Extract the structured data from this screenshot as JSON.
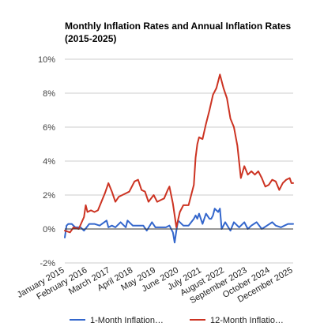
{
  "chart_data": {
    "type": "line",
    "title": "Monthly Inflation Rates and Annual Inflation Rates",
    "subtitle": "(2015-2025)",
    "xlabel": "",
    "ylabel": "",
    "x_range": [
      "2015-01",
      "2025-12"
    ],
    "ylim": [
      -2,
      10
    ],
    "y_ticks": [
      "10%",
      "8%",
      "6%",
      "4%",
      "2%",
      "0%",
      "-2%"
    ],
    "x_ticks": [
      "January 2015",
      "February 2016",
      "March 2017",
      "April 2018",
      "May 2019",
      "June 2020",
      "July 2021",
      "August 2022",
      "September 2023",
      "October 2024",
      "December 2025"
    ],
    "grid": true,
    "legend_position": "bottom",
    "series": [
      {
        "name": "1-Month Inflation…",
        "color": "#3366cc",
        "points": [
          [
            "2015-01",
            -0.5
          ],
          [
            "2015-02",
            0.2
          ],
          [
            "2015-03",
            0.3
          ],
          [
            "2015-05",
            0.3
          ],
          [
            "2015-07",
            0.1
          ],
          [
            "2015-10",
            0.1
          ],
          [
            "2015-12",
            -0.1
          ],
          [
            "2016-03",
            0.3
          ],
          [
            "2016-06",
            0.3
          ],
          [
            "2016-09",
            0.2
          ],
          [
            "2017-01",
            0.5
          ],
          [
            "2017-02",
            0.1
          ],
          [
            "2017-04",
            0.2
          ],
          [
            "2017-06",
            0.1
          ],
          [
            "2017-09",
            0.4
          ],
          [
            "2017-12",
            0.1
          ],
          [
            "2018-01",
            0.5
          ],
          [
            "2018-04",
            0.2
          ],
          [
            "2018-07",
            0.2
          ],
          [
            "2018-10",
            0.2
          ],
          [
            "2018-12",
            -0.1
          ],
          [
            "2019-03",
            0.4
          ],
          [
            "2019-05",
            0.1
          ],
          [
            "2019-08",
            0.1
          ],
          [
            "2019-11",
            0.1
          ],
          [
            "2020-01",
            0.2
          ],
          [
            "2020-03",
            -0.2
          ],
          [
            "2020-04",
            -0.8
          ],
          [
            "2020-05",
            -0.1
          ],
          [
            "2020-06",
            0.5
          ],
          [
            "2020-09",
            0.2
          ],
          [
            "2020-12",
            0.2
          ],
          [
            "2021-03",
            0.6
          ],
          [
            "2021-04",
            0.8
          ],
          [
            "2021-05",
            0.6
          ],
          [
            "2021-06",
            0.9
          ],
          [
            "2021-08",
            0.3
          ],
          [
            "2021-10",
            0.9
          ],
          [
            "2021-12",
            0.6
          ],
          [
            "2022-01",
            0.6
          ],
          [
            "2022-02",
            0.8
          ],
          [
            "2022-03",
            1.2
          ],
          [
            "2022-05",
            1.0
          ],
          [
            "2022-06",
            1.2
          ],
          [
            "2022-07",
            0.0
          ],
          [
            "2022-09",
            0.4
          ],
          [
            "2022-12",
            -0.1
          ],
          [
            "2023-02",
            0.4
          ],
          [
            "2023-05",
            0.1
          ],
          [
            "2023-08",
            0.4
          ],
          [
            "2023-10",
            0.0
          ],
          [
            "2023-12",
            0.2
          ],
          [
            "2024-03",
            0.4
          ],
          [
            "2024-06",
            0.0
          ],
          [
            "2024-09",
            0.2
          ],
          [
            "2024-12",
            0.4
          ],
          [
            "2025-02",
            0.2
          ],
          [
            "2025-05",
            0.1
          ],
          [
            "2025-07",
            0.2
          ],
          [
            "2025-09",
            0.3
          ],
          [
            "2025-12",
            0.3
          ]
        ]
      },
      {
        "name": "12-Month Inflatio…",
        "color": "#cc3322",
        "points": [
          [
            "2015-01",
            -0.1
          ],
          [
            "2015-04",
            -0.2
          ],
          [
            "2015-06",
            0.1
          ],
          [
            "2015-09",
            0.0
          ],
          [
            "2015-12",
            0.7
          ],
          [
            "2016-01",
            1.4
          ],
          [
            "2016-02",
            1.0
          ],
          [
            "2016-04",
            1.1
          ],
          [
            "2016-06",
            1.0
          ],
          [
            "2016-08",
            1.1
          ],
          [
            "2016-10",
            1.6
          ],
          [
            "2016-12",
            2.1
          ],
          [
            "2017-02",
            2.7
          ],
          [
            "2017-04",
            2.2
          ],
          [
            "2017-06",
            1.6
          ],
          [
            "2017-08",
            1.9
          ],
          [
            "2017-10",
            2.0
          ],
          [
            "2017-12",
            2.1
          ],
          [
            "2018-02",
            2.2
          ],
          [
            "2018-05",
            2.8
          ],
          [
            "2018-07",
            2.9
          ],
          [
            "2018-09",
            2.3
          ],
          [
            "2018-11",
            2.2
          ],
          [
            "2019-01",
            1.6
          ],
          [
            "2019-04",
            2.0
          ],
          [
            "2019-06",
            1.6
          ],
          [
            "2019-08",
            1.7
          ],
          [
            "2019-10",
            1.8
          ],
          [
            "2019-12",
            2.3
          ],
          [
            "2020-01",
            2.5
          ],
          [
            "2020-03",
            1.5
          ],
          [
            "2020-05",
            0.1
          ],
          [
            "2020-07",
            1.0
          ],
          [
            "2020-09",
            1.4
          ],
          [
            "2020-12",
            1.4
          ],
          [
            "2021-03",
            2.6
          ],
          [
            "2021-04",
            4.2
          ],
          [
            "2021-05",
            5.0
          ],
          [
            "2021-06",
            5.4
          ],
          [
            "2021-08",
            5.3
          ],
          [
            "2021-10",
            6.2
          ],
          [
            "2021-12",
            7.0
          ],
          [
            "2022-02",
            7.9
          ],
          [
            "2022-04",
            8.3
          ],
          [
            "2022-06",
            9.1
          ],
          [
            "2022-08",
            8.3
          ],
          [
            "2022-10",
            7.7
          ],
          [
            "2022-12",
            6.5
          ],
          [
            "2023-02",
            6.0
          ],
          [
            "2023-04",
            4.9
          ],
          [
            "2023-06",
            3.0
          ],
          [
            "2023-08",
            3.7
          ],
          [
            "2023-10",
            3.2
          ],
          [
            "2023-12",
            3.4
          ],
          [
            "2024-02",
            3.2
          ],
          [
            "2024-04",
            3.4
          ],
          [
            "2024-06",
            3.0
          ],
          [
            "2024-08",
            2.5
          ],
          [
            "2024-10",
            2.6
          ],
          [
            "2024-12",
            2.9
          ],
          [
            "2025-02",
            2.8
          ],
          [
            "2025-04",
            2.3
          ],
          [
            "2025-06",
            2.7
          ],
          [
            "2025-08",
            2.9
          ],
          [
            "2025-10",
            3.0
          ],
          [
            "2025-11",
            2.7
          ],
          [
            "2025-12",
            2.7
          ]
        ]
      }
    ]
  }
}
